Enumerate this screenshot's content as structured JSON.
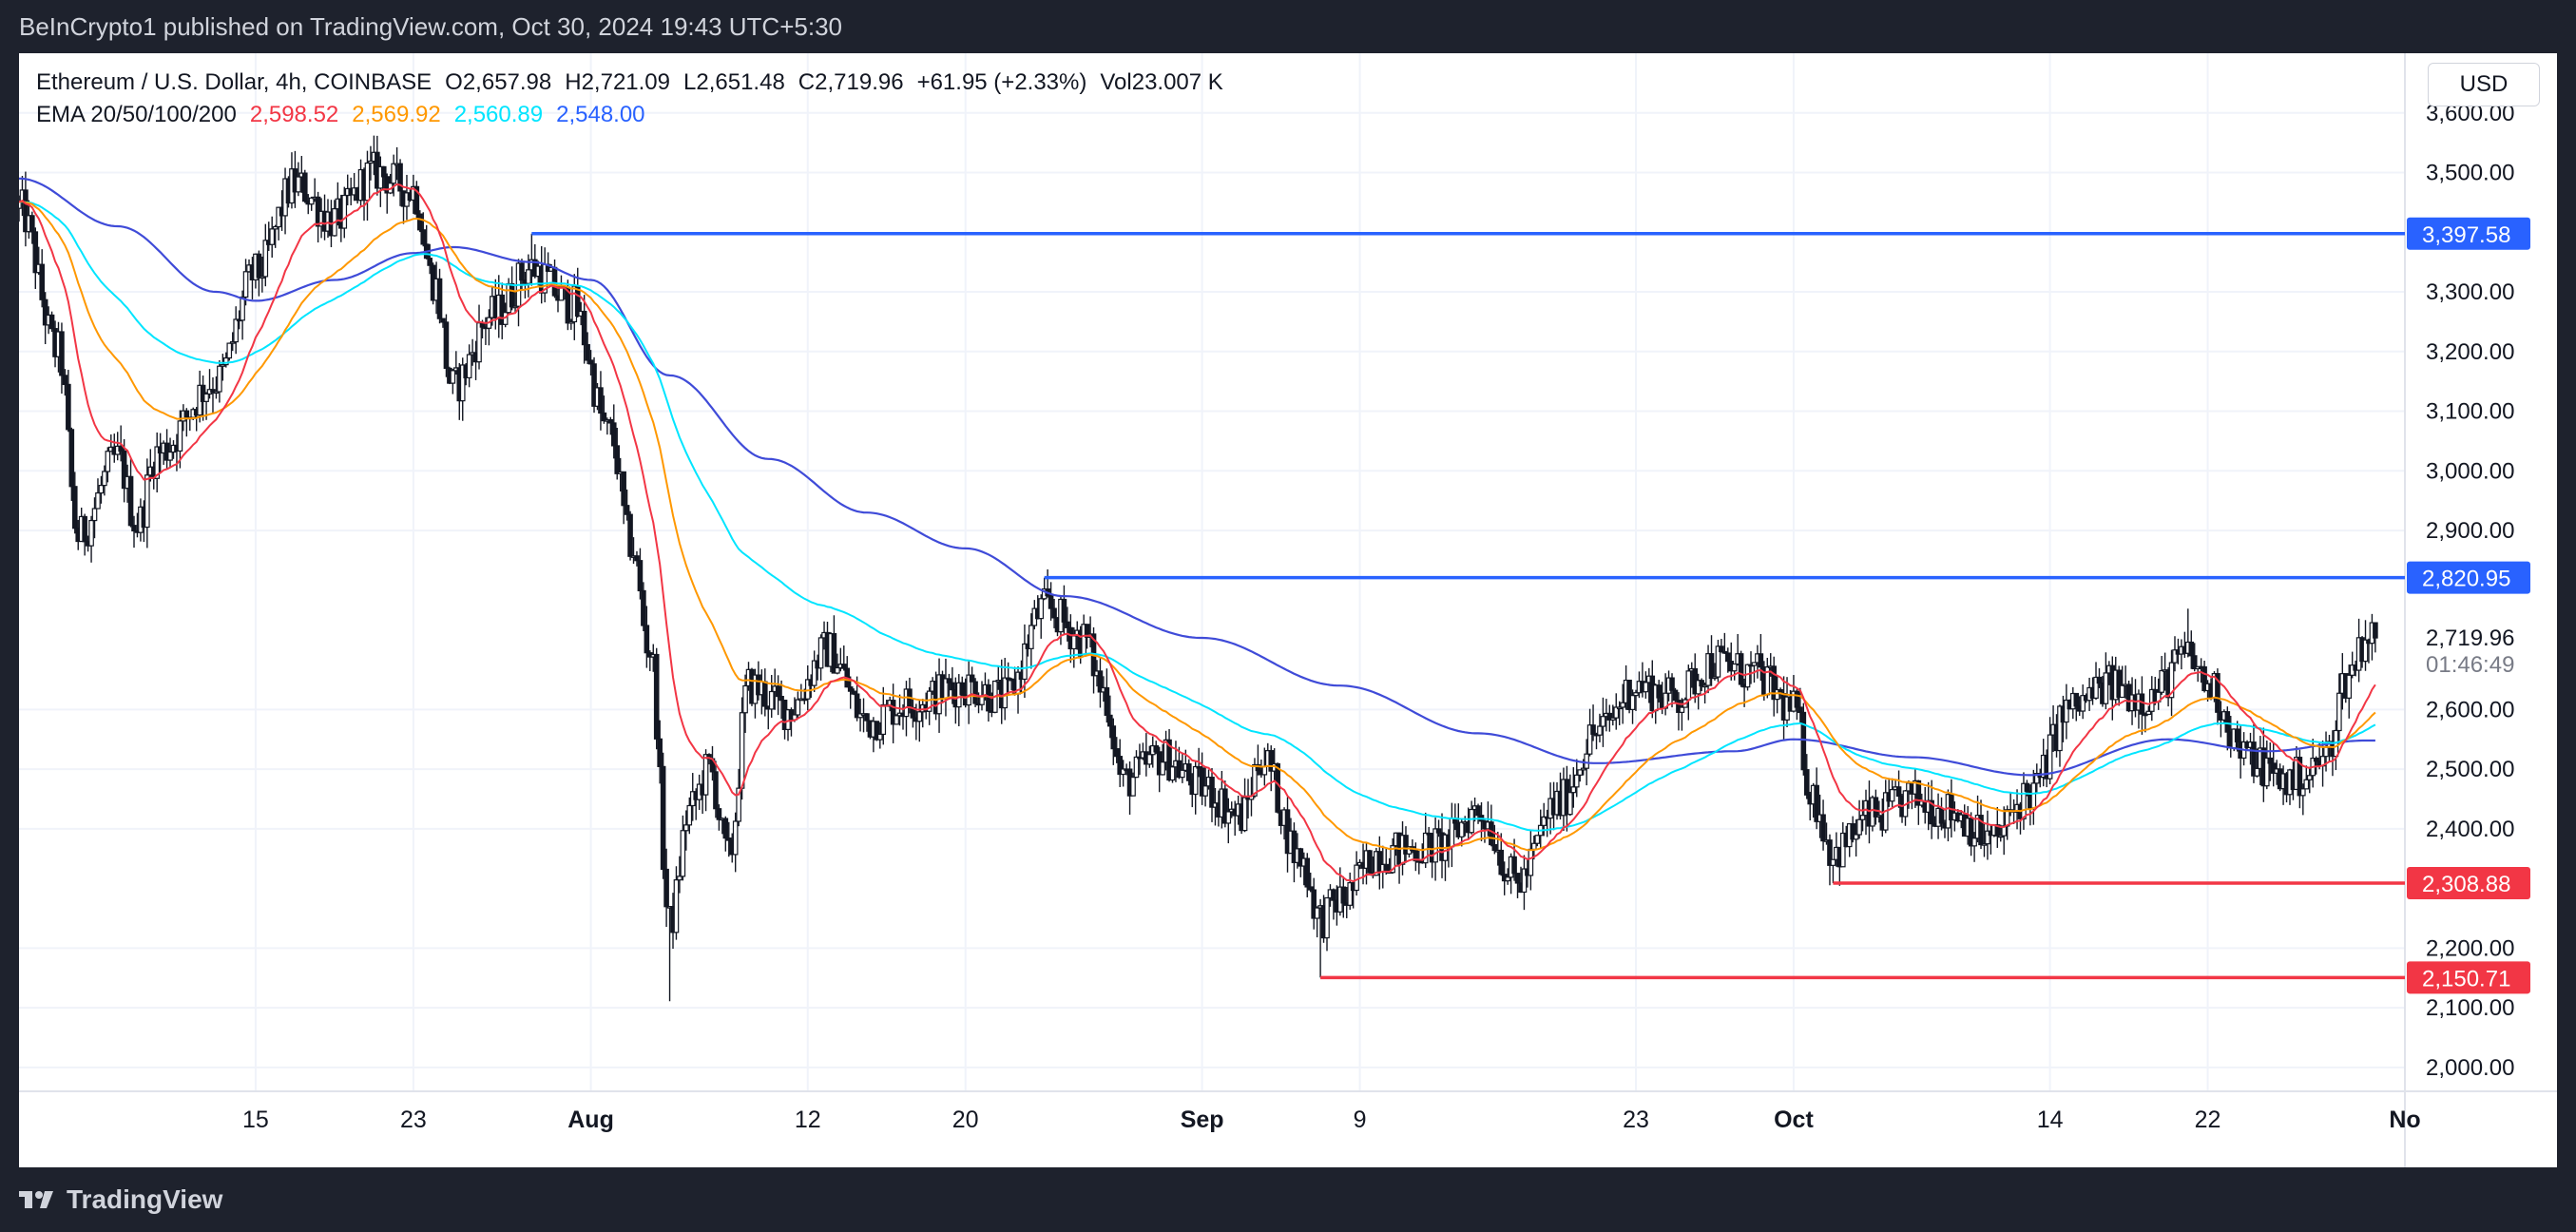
{
  "header": {
    "publisher_text": "BeInCrypto1 published on TradingView.com, Oct 30, 2024 19:43 UTC+5:30"
  },
  "footer": {
    "brand": "TradingView"
  },
  "legend": {
    "symbol": "Ethereum / U.S. Dollar, 4h, COINBASE",
    "open": "O2,657.98",
    "high": "H2,721.09",
    "low": "L2,651.48",
    "close": "C2,719.96",
    "change": "+61.95 (+2.33%)",
    "volume": "Vol23.007 K",
    "ema_label": "EMA 20/50/100/200",
    "ema_values": [
      {
        "value": "2,598.52",
        "color": "#f23645"
      },
      {
        "value": "2,569.92",
        "color": "#ff9800"
      },
      {
        "value": "2,560.89",
        "color": "#00e5ff"
      },
      {
        "value": "2,548.00",
        "color": "#2962ff"
      }
    ]
  },
  "price_axis": {
    "currency": "USD",
    "countdown": "01:46:49"
  },
  "colors": {
    "candle": "#131722",
    "ema20": "#f23645",
    "ema50": "#ff9800",
    "ema100": "#00e5ff",
    "ema200": "#3f4bd8",
    "resistance": "#2962ff",
    "support": "#f23645"
  },
  "chart_data": {
    "type": "line",
    "title": "Ethereum / U.S. Dollar, 4h, COINBASE",
    "ylim": [
      1960,
      3700
    ],
    "y_ticks": [
      "2,000.00",
      "2,100.00",
      "2,200.00",
      "2,400.00",
      "2,500.00",
      "2,600.00",
      "2,900.00",
      "3,000.00",
      "3,100.00",
      "3,200.00",
      "3,300.00",
      "3,500.00",
      "3,600.00"
    ],
    "x_ticks": [
      {
        "label": "15",
        "date": "2024-07-15",
        "bold": false
      },
      {
        "label": "23",
        "date": "2024-07-23",
        "bold": false
      },
      {
        "label": "Aug",
        "date": "2024-08-01",
        "bold": true
      },
      {
        "label": "12",
        "date": "2024-08-12",
        "bold": false
      },
      {
        "label": "20",
        "date": "2024-08-20",
        "bold": false
      },
      {
        "label": "Sep",
        "date": "2024-09-01",
        "bold": true
      },
      {
        "label": "9",
        "date": "2024-09-09",
        "bold": false
      },
      {
        "label": "23",
        "date": "2024-09-23",
        "bold": false
      },
      {
        "label": "Oct",
        "date": "2024-10-01",
        "bold": true
      },
      {
        "label": "14",
        "date": "2024-10-14",
        "bold": false
      },
      {
        "label": "22",
        "date": "2024-10-22",
        "bold": false
      },
      {
        "label": "No",
        "date": "2024-11-01",
        "bold": true
      }
    ],
    "x_range": [
      "2024-07-03",
      "2024-11-01"
    ],
    "price_anchors": [
      {
        "date": "2024-07-03",
        "price": 3440
      },
      {
        "date": "2024-07-05",
        "price": 3200
      },
      {
        "date": "2024-07-06",
        "price": 2890
      },
      {
        "date": "2024-07-08",
        "price": 3020
      },
      {
        "date": "2024-07-09",
        "price": 2910
      },
      {
        "date": "2024-07-10",
        "price": 3030
      },
      {
        "date": "2024-07-13",
        "price": 3150
      },
      {
        "date": "2024-07-15",
        "price": 3330
      },
      {
        "date": "2024-07-17",
        "price": 3480
      },
      {
        "date": "2024-07-19",
        "price": 3420
      },
      {
        "date": "2024-07-21",
        "price": 3500
      },
      {
        "date": "2024-07-23",
        "price": 3470
      },
      {
        "date": "2024-07-24",
        "price": 3320
      },
      {
        "date": "2024-07-25",
        "price": 3140
      },
      {
        "date": "2024-07-27",
        "price": 3260
      },
      {
        "date": "2024-07-29",
        "price": 3340
      },
      {
        "date": "2024-07-31",
        "price": 3280
      },
      {
        "date": "2024-08-02",
        "price": 3060
      },
      {
        "date": "2024-08-03",
        "price": 2880
      },
      {
        "date": "2024-08-04",
        "price": 2700
      },
      {
        "date": "2024-08-05",
        "price": 2240
      },
      {
        "date": "2024-08-06",
        "price": 2430
      },
      {
        "date": "2024-08-07",
        "price": 2500
      },
      {
        "date": "2024-08-08",
        "price": 2350
      },
      {
        "date": "2024-08-09",
        "price": 2640
      },
      {
        "date": "2024-08-11",
        "price": 2600
      },
      {
        "date": "2024-08-13",
        "price": 2700
      },
      {
        "date": "2024-08-15",
        "price": 2580
      },
      {
        "date": "2024-08-17",
        "price": 2610
      },
      {
        "date": "2024-08-20",
        "price": 2640
      },
      {
        "date": "2024-08-22",
        "price": 2620
      },
      {
        "date": "2024-08-24",
        "price": 2770
      },
      {
        "date": "2024-08-26",
        "price": 2720
      },
      {
        "date": "2024-08-27",
        "price": 2630
      },
      {
        "date": "2024-08-28",
        "price": 2480
      },
      {
        "date": "2024-08-30",
        "price": 2520
      },
      {
        "date": "2024-09-01",
        "price": 2470
      },
      {
        "date": "2024-09-03",
        "price": 2420
      },
      {
        "date": "2024-09-04",
        "price": 2520
      },
      {
        "date": "2024-09-06",
        "price": 2350
      },
      {
        "date": "2024-09-07",
        "price": 2250
      },
      {
        "date": "2024-09-08",
        "price": 2280
      },
      {
        "date": "2024-09-10",
        "price": 2360
      },
      {
        "date": "2024-09-13",
        "price": 2370
      },
      {
        "date": "2024-09-15",
        "price": 2430
      },
      {
        "date": "2024-09-17",
        "price": 2310
      },
      {
        "date": "2024-09-19",
        "price": 2440
      },
      {
        "date": "2024-09-21",
        "price": 2560
      },
      {
        "date": "2024-09-23",
        "price": 2640
      },
      {
        "date": "2024-09-25",
        "price": 2620
      },
      {
        "date": "2024-09-27",
        "price": 2680
      },
      {
        "date": "2024-09-29",
        "price": 2660
      },
      {
        "date": "2024-10-01",
        "price": 2600
      },
      {
        "date": "2024-10-02",
        "price": 2450
      },
      {
        "date": "2024-10-03",
        "price": 2360
      },
      {
        "date": "2024-10-05",
        "price": 2420
      },
      {
        "date": "2024-10-07",
        "price": 2450
      },
      {
        "date": "2024-10-09",
        "price": 2430
      },
      {
        "date": "2024-10-11",
        "price": 2380
      },
      {
        "date": "2024-10-13",
        "price": 2460
      },
      {
        "date": "2024-10-15",
        "price": 2600
      },
      {
        "date": "2024-10-17",
        "price": 2640
      },
      {
        "date": "2024-10-19",
        "price": 2620
      },
      {
        "date": "2024-10-21",
        "price": 2690
      },
      {
        "date": "2024-10-22",
        "price": 2640
      },
      {
        "date": "2024-10-24",
        "price": 2520
      },
      {
        "date": "2024-10-26",
        "price": 2480
      },
      {
        "date": "2024-10-27",
        "price": 2490
      },
      {
        "date": "2024-10-28",
        "price": 2520
      },
      {
        "date": "2024-10-29",
        "price": 2650
      },
      {
        "date": "2024-10-30",
        "price": 2720
      }
    ],
    "ema200_anchors": [
      {
        "date": "2024-07-03",
        "price": 3490
      },
      {
        "date": "2024-07-08",
        "price": 3410
      },
      {
        "date": "2024-07-13",
        "price": 3300
      },
      {
        "date": "2024-07-15",
        "price": 3285
      },
      {
        "date": "2024-07-19",
        "price": 3320
      },
      {
        "date": "2024-07-23",
        "price": 3365
      },
      {
        "date": "2024-07-25",
        "price": 3375
      },
      {
        "date": "2024-07-29",
        "price": 3350
      },
      {
        "date": "2024-08-01",
        "price": 3320
      },
      {
        "date": "2024-08-05",
        "price": 3160
      },
      {
        "date": "2024-08-10",
        "price": 3020
      },
      {
        "date": "2024-08-15",
        "price": 2930
      },
      {
        "date": "2024-08-20",
        "price": 2870
      },
      {
        "date": "2024-08-25",
        "price": 2790
      },
      {
        "date": "2024-09-01",
        "price": 2720
      },
      {
        "date": "2024-09-08",
        "price": 2640
      },
      {
        "date": "2024-09-15",
        "price": 2560
      },
      {
        "date": "2024-09-21",
        "price": 2510
      },
      {
        "date": "2024-09-28",
        "price": 2530
      },
      {
        "date": "2024-10-01",
        "price": 2550
      },
      {
        "date": "2024-10-07",
        "price": 2520
      },
      {
        "date": "2024-10-13",
        "price": 2490
      },
      {
        "date": "2024-10-20",
        "price": 2550
      },
      {
        "date": "2024-10-25",
        "price": 2530
      },
      {
        "date": "2024-10-30",
        "price": 2548
      }
    ],
    "series": [
      {
        "name": "EMA 20",
        "period": 20,
        "value": 2598.52
      },
      {
        "name": "EMA 50",
        "period": 50,
        "value": 2569.92
      },
      {
        "name": "EMA 100",
        "period": 100,
        "value": 2560.89
      },
      {
        "name": "EMA 200",
        "period": 200,
        "value": 2548.0
      }
    ],
    "levels": [
      {
        "value": 3397.58,
        "label": "3,397.58",
        "kind": "resistance",
        "start_date": "2024-07-29"
      },
      {
        "value": 2820.95,
        "label": "2,820.95",
        "kind": "resistance",
        "start_date": "2024-08-24"
      },
      {
        "value": 2308.88,
        "label": "2,308.88",
        "kind": "support",
        "start_date": "2024-10-03"
      },
      {
        "value": 2150.71,
        "label": "2,150.71",
        "kind": "support",
        "start_date": "2024-09-07"
      }
    ],
    "last_price": {
      "value": 2719.96,
      "label": "2,719.96"
    }
  }
}
